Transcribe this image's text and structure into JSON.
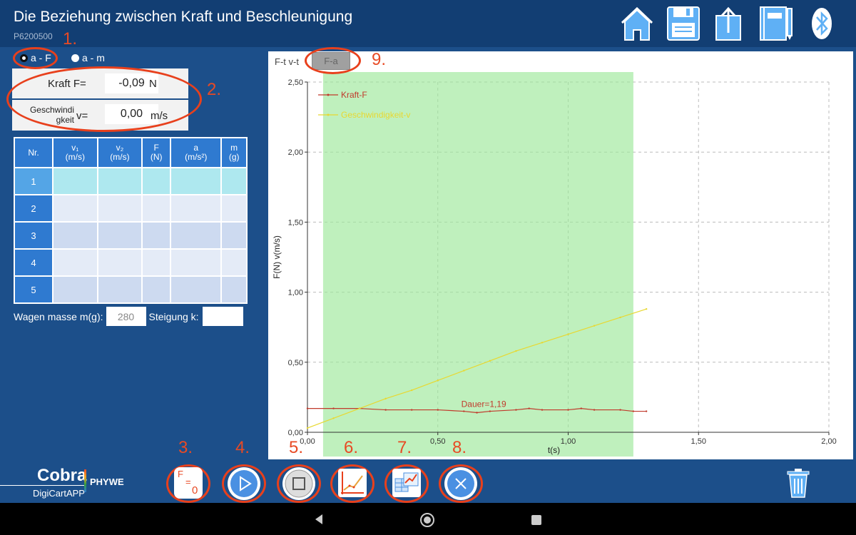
{
  "header": {
    "title": "Die Beziehung zwischen Kraft und Beschleunigung",
    "code": "P6200500",
    "icons": [
      "home-icon",
      "save-icon",
      "upload-icon",
      "notebook-icon",
      "bluetooth-icon"
    ]
  },
  "mode": {
    "options": [
      "a - F",
      "a - m"
    ],
    "selected": "a - F"
  },
  "measurement": {
    "force_label": "Kraft F=",
    "force_value": "-0,09",
    "force_unit": "N",
    "speed_label_1": "Geschwindi",
    "speed_label_2": "gkeit",
    "speed_eq": "v=",
    "speed_value": "0,00",
    "speed_unit": "m/s"
  },
  "table": {
    "headers": [
      {
        "top": "Nr.",
        "bottom": ""
      },
      {
        "top": "v₁",
        "bottom": "(m/s)"
      },
      {
        "top": "v₂",
        "bottom": "(m/s)"
      },
      {
        "top": "F",
        "bottom": "(N)"
      },
      {
        "top": "a",
        "bottom": "(m/s²)"
      },
      {
        "top": "m",
        "bottom": "(g)"
      }
    ],
    "rows": [
      "1",
      "2",
      "3",
      "4",
      "5"
    ]
  },
  "footer_fields": {
    "mass_label": "Wagen masse m(g):",
    "mass_value": "280",
    "slope_label": "Steigung k:",
    "slope_value": ""
  },
  "tabs": {
    "inactive": "F-t v-t",
    "active": "F-a"
  },
  "chart_data": {
    "type": "line",
    "xlabel": "t(s)",
    "ylabel": "F(N) v(m/s)",
    "xlim": [
      0,
      2
    ],
    "ylim": [
      0,
      2.5
    ],
    "x_ticks": [
      "0,00",
      "0,50",
      "1,00",
      "1,50",
      "2,00"
    ],
    "y_ticks": [
      "0,00",
      "0,50",
      "1,00",
      "1,50",
      "2,00",
      "2,50"
    ],
    "grid": true,
    "legend_position": "top-left",
    "highlight_range": [
      0.06,
      1.25
    ],
    "annotation": "Dauer=1,19",
    "series": [
      {
        "name": "Kraft-F",
        "color": "#c0392b",
        "x": [
          0.0,
          0.1,
          0.2,
          0.3,
          0.4,
          0.5,
          0.6,
          0.65,
          0.7,
          0.8,
          0.85,
          0.9,
          1.0,
          1.05,
          1.1,
          1.2,
          1.25,
          1.3
        ],
        "y": [
          0.17,
          0.17,
          0.17,
          0.16,
          0.16,
          0.16,
          0.15,
          0.14,
          0.15,
          0.16,
          0.17,
          0.16,
          0.16,
          0.17,
          0.16,
          0.16,
          0.15,
          0.15
        ]
      },
      {
        "name": "Geschwindigkeit-v",
        "color": "#e8d830",
        "x": [
          0.0,
          0.1,
          0.2,
          0.3,
          0.4,
          0.5,
          0.6,
          0.7,
          0.8,
          0.9,
          1.0,
          1.1,
          1.2,
          1.3
        ],
        "y": [
          0.03,
          0.1,
          0.17,
          0.24,
          0.3,
          0.37,
          0.44,
          0.51,
          0.58,
          0.64,
          0.7,
          0.76,
          0.82,
          0.88
        ]
      }
    ]
  },
  "annotations": [
    "1.",
    "2.",
    "3.",
    "4.",
    "5.",
    "6.",
    "7.",
    "8.",
    "9."
  ],
  "toolbar": {
    "buttons": [
      "tare-force-button",
      "play-button",
      "stop-button",
      "graph-button",
      "table-graph-button",
      "cancel-button"
    ],
    "zero_label_f": "F",
    "zero_label_eq": "=",
    "zero_label_0": "0"
  },
  "logo": {
    "cobra": "Cobra",
    "digicart": "DigiCartAPP",
    "phywe": "PHYWE"
  }
}
